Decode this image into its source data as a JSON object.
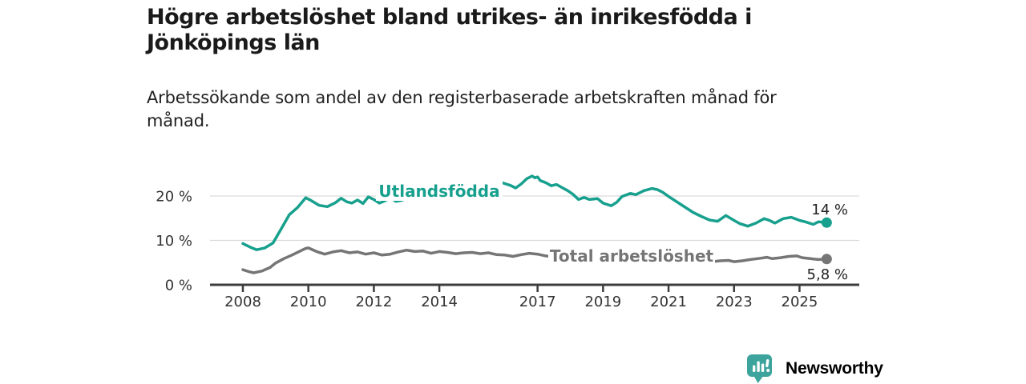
{
  "header": {
    "title": "Högre arbetslöshet bland utrikes- än inrikesfödda i Jönköpings län",
    "subtitle": "Arbetssökande som andel av den registerbaserade arbetskraften månad för månad."
  },
  "colors": {
    "utlandsfodda": "#18A08E",
    "total": "#757575",
    "grid": "#DBDBDB",
    "axis": "#3D3D3D",
    "tick_text": "#2B2B2B",
    "end_label_text": "#222222",
    "logo": "#3DA49D"
  },
  "branding": {
    "logo_text": "Newsworthy",
    "logo_icon": "bar-chart-speech-bubble"
  },
  "chart_data": {
    "type": "line",
    "x_unit": "year (monthly series)",
    "grid": "horizontal",
    "xlim": [
      2007.8,
      2026.3
    ],
    "ylim": [
      0,
      26
    ],
    "x_ticks": [
      2008,
      2010,
      2012,
      2014,
      2017,
      2019,
      2021,
      2023,
      2025
    ],
    "y_ticks": [
      {
        "value": 0,
        "label": "0 %"
      },
      {
        "value": 10,
        "label": "10 %"
      },
      {
        "value": 20,
        "label": "20 %"
      }
    ],
    "series": [
      {
        "name": "Utlandsfödda",
        "color": "#18A08E",
        "end_label": "14 %",
        "end_value": 14.0,
        "points": [
          [
            2008.0,
            9.3
          ],
          [
            2008.25,
            8.4
          ],
          [
            2008.42,
            7.9
          ],
          [
            2008.67,
            8.3
          ],
          [
            2008.92,
            9.4
          ],
          [
            2009.17,
            12.6
          ],
          [
            2009.42,
            15.8
          ],
          [
            2009.67,
            17.4
          ],
          [
            2009.92,
            19.6
          ],
          [
            2010.08,
            19.0
          ],
          [
            2010.33,
            17.9
          ],
          [
            2010.58,
            17.6
          ],
          [
            2010.83,
            18.5
          ],
          [
            2011.0,
            19.5
          ],
          [
            2011.17,
            18.7
          ],
          [
            2011.33,
            18.4
          ],
          [
            2011.5,
            19.1
          ],
          [
            2011.67,
            18.3
          ],
          [
            2011.83,
            19.8
          ],
          [
            2012.0,
            19.2
          ],
          [
            2012.17,
            18.4
          ],
          [
            2012.33,
            18.9
          ],
          [
            2012.5,
            19.6
          ],
          [
            2012.67,
            18.8
          ],
          [
            2012.83,
            19.0
          ],
          [
            2013.0,
            19.4
          ],
          [
            2013.25,
            19.8
          ],
          [
            2013.5,
            20.2
          ],
          [
            2013.75,
            20.6
          ],
          [
            2014.0,
            20.9
          ],
          [
            2014.25,
            21.1
          ],
          [
            2014.5,
            21.3
          ],
          [
            2014.75,
            21.5
          ],
          [
            2015.0,
            21.6
          ],
          [
            2015.25,
            21.4
          ],
          [
            2015.5,
            21.8
          ],
          [
            2015.75,
            23.4
          ],
          [
            2016.0,
            22.8
          ],
          [
            2016.17,
            22.4
          ],
          [
            2016.33,
            21.8
          ],
          [
            2016.5,
            22.7
          ],
          [
            2016.67,
            23.9
          ],
          [
            2016.83,
            24.5
          ],
          [
            2016.92,
            24.1
          ],
          [
            2017.0,
            24.3
          ],
          [
            2017.08,
            23.5
          ],
          [
            2017.25,
            23.0
          ],
          [
            2017.42,
            22.3
          ],
          [
            2017.58,
            22.6
          ],
          [
            2017.75,
            21.9
          ],
          [
            2017.92,
            21.2
          ],
          [
            2018.08,
            20.4
          ],
          [
            2018.25,
            19.2
          ],
          [
            2018.42,
            19.7
          ],
          [
            2018.58,
            19.2
          ],
          [
            2018.83,
            19.4
          ],
          [
            2019.0,
            18.4
          ],
          [
            2019.25,
            17.8
          ],
          [
            2019.42,
            18.6
          ],
          [
            2019.58,
            19.9
          ],
          [
            2019.83,
            20.6
          ],
          [
            2020.0,
            20.3
          ],
          [
            2020.25,
            21.2
          ],
          [
            2020.5,
            21.7
          ],
          [
            2020.67,
            21.4
          ],
          [
            2020.83,
            20.8
          ],
          [
            2021.0,
            19.9
          ],
          [
            2021.25,
            18.7
          ],
          [
            2021.5,
            17.5
          ],
          [
            2021.75,
            16.3
          ],
          [
            2022.0,
            15.4
          ],
          [
            2022.25,
            14.6
          ],
          [
            2022.5,
            14.3
          ],
          [
            2022.75,
            15.6
          ],
          [
            2023.0,
            14.5
          ],
          [
            2023.17,
            13.8
          ],
          [
            2023.42,
            13.2
          ],
          [
            2023.67,
            13.9
          ],
          [
            2023.92,
            14.9
          ],
          [
            2024.08,
            14.5
          ],
          [
            2024.25,
            13.9
          ],
          [
            2024.5,
            14.9
          ],
          [
            2024.75,
            15.2
          ],
          [
            2025.0,
            14.5
          ],
          [
            2025.17,
            14.2
          ],
          [
            2025.42,
            13.6
          ],
          [
            2025.58,
            14.2
          ],
          [
            2025.83,
            14.0
          ]
        ]
      },
      {
        "name": "Total arbetslöshet",
        "color": "#757575",
        "end_label": "5,8 %",
        "end_value": 5.8,
        "points": [
          [
            2008.0,
            3.4
          ],
          [
            2008.17,
            3.0
          ],
          [
            2008.33,
            2.7
          ],
          [
            2008.58,
            3.1
          ],
          [
            2008.83,
            3.9
          ],
          [
            2009.0,
            4.9
          ],
          [
            2009.25,
            5.9
          ],
          [
            2009.5,
            6.7
          ],
          [
            2009.75,
            7.6
          ],
          [
            2009.92,
            8.2
          ],
          [
            2010.0,
            8.3
          ],
          [
            2010.25,
            7.5
          ],
          [
            2010.5,
            6.9
          ],
          [
            2010.75,
            7.4
          ],
          [
            2011.0,
            7.7
          ],
          [
            2011.25,
            7.2
          ],
          [
            2011.5,
            7.4
          ],
          [
            2011.75,
            6.9
          ],
          [
            2012.0,
            7.2
          ],
          [
            2012.25,
            6.7
          ],
          [
            2012.5,
            6.9
          ],
          [
            2012.75,
            7.4
          ],
          [
            2013.0,
            7.8
          ],
          [
            2013.25,
            7.5
          ],
          [
            2013.5,
            7.6
          ],
          [
            2013.75,
            7.1
          ],
          [
            2014.0,
            7.5
          ],
          [
            2014.25,
            7.3
          ],
          [
            2014.5,
            7.0
          ],
          [
            2014.75,
            7.2
          ],
          [
            2015.0,
            7.3
          ],
          [
            2015.25,
            7.0
          ],
          [
            2015.5,
            7.2
          ],
          [
            2015.75,
            6.8
          ],
          [
            2016.0,
            6.7
          ],
          [
            2016.25,
            6.4
          ],
          [
            2016.5,
            6.8
          ],
          [
            2016.75,
            7.1
          ],
          [
            2017.0,
            6.9
          ],
          [
            2017.25,
            6.5
          ],
          [
            2017.5,
            6.3
          ],
          [
            2017.75,
            6.2
          ],
          [
            2018.0,
            6.1
          ],
          [
            2018.5,
            5.9
          ],
          [
            2019.0,
            6.1
          ],
          [
            2019.5,
            6.4
          ],
          [
            2020.0,
            6.8
          ],
          [
            2020.5,
            7.0
          ],
          [
            2021.0,
            6.5
          ],
          [
            2021.5,
            5.9
          ],
          [
            2022.0,
            5.4
          ],
          [
            2022.33,
            5.2
          ],
          [
            2022.58,
            5.4
          ],
          [
            2022.83,
            5.5
          ],
          [
            2023.0,
            5.2
          ],
          [
            2023.25,
            5.4
          ],
          [
            2023.5,
            5.7
          ],
          [
            2023.83,
            6.0
          ],
          [
            2024.0,
            6.2
          ],
          [
            2024.17,
            5.9
          ],
          [
            2024.42,
            6.1
          ],
          [
            2024.67,
            6.4
          ],
          [
            2024.92,
            6.5
          ],
          [
            2025.08,
            6.1
          ],
          [
            2025.33,
            5.9
          ],
          [
            2025.58,
            5.7
          ],
          [
            2025.83,
            5.8
          ]
        ]
      }
    ]
  }
}
